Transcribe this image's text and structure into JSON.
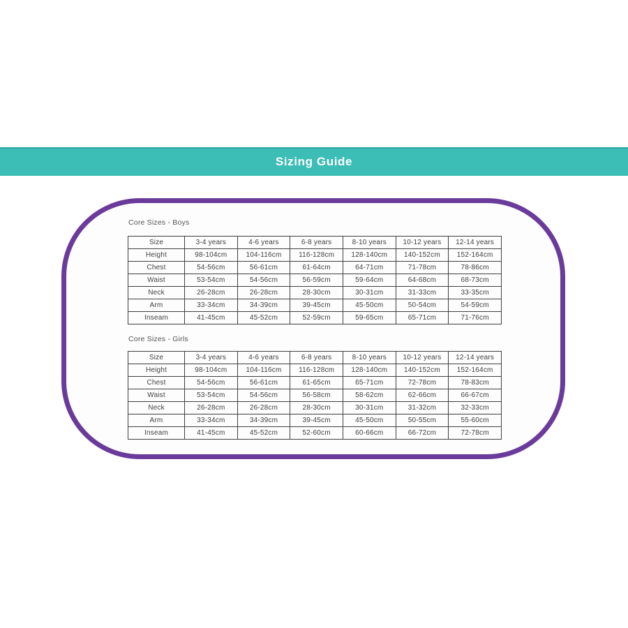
{
  "banner": {
    "title": "Sizing Guide",
    "background_color": "#3cbdb5",
    "text_color": "#ffffff"
  },
  "card": {
    "border_color": "#6a3b9b",
    "fill_color": "#fdfdfd"
  },
  "tables": [
    {
      "title": "Core Sizes - Boys",
      "header": [
        "Size",
        "3-4 years",
        "4-6 years",
        "6-8 years",
        "8-10 years",
        "10-12 years",
        "12-14 years"
      ],
      "rows": [
        [
          "Height",
          "98-104cm",
          "104-116cm",
          "116-128cm",
          "128-140cm",
          "140-152cm",
          "152-164cm"
        ],
        [
          "Chest",
          "54-56cm",
          "56-61cm",
          "61-64cm",
          "64-71cm",
          "71-78cm",
          "78-86cm"
        ],
        [
          "Waist",
          "53-54cm",
          "54-56cm",
          "56-59cm",
          "59-64cm",
          "64-68cm",
          "68-73cm"
        ],
        [
          "Neck",
          "26-28cm",
          "26-28cm",
          "28-30cm",
          "30-31cm",
          "31-33cm",
          "33-35cm"
        ],
        [
          "Arm",
          "33-34cm",
          "34-39cm",
          "39-45cm",
          "45-50cm",
          "50-54cm",
          "54-59cm"
        ],
        [
          "Inseam",
          "41-45cm",
          "45-52cm",
          "52-59cm",
          "59-65cm",
          "65-71cm",
          "71-76cm"
        ]
      ]
    },
    {
      "title": "Core Sizes - Girls",
      "header": [
        "Size",
        "3-4 years",
        "4-6 years",
        "6-8 years",
        "8-10 years",
        "10-12 years",
        "12-14 years"
      ],
      "rows": [
        [
          "Height",
          "98-104cm",
          "104-116cm",
          "116-128cm",
          "128-140cm",
          "140-152cm",
          "152-164cm"
        ],
        [
          "Chest",
          "54-56cm",
          "56-61cm",
          "61-65cm",
          "65-71cm",
          "72-78cm",
          "78-83cm"
        ],
        [
          "Waist",
          "53-54cm",
          "54-56cm",
          "56-58cm",
          "58-62cm",
          "62-66cm",
          "66-67cm"
        ],
        [
          "Neck",
          "26-28cm",
          "26-28cm",
          "28-30cm",
          "30-31cm",
          "31-32cm",
          "32-33cm"
        ],
        [
          "Arm",
          "33-34cm",
          "34-39cm",
          "39-45cm",
          "45-50cm",
          "50-55cm",
          "55-60cm"
        ],
        [
          "Inseam",
          "41-45cm",
          "45-52cm",
          "52-60cm",
          "60-66cm",
          "66-72cm",
          "72-78cm"
        ]
      ]
    }
  ]
}
